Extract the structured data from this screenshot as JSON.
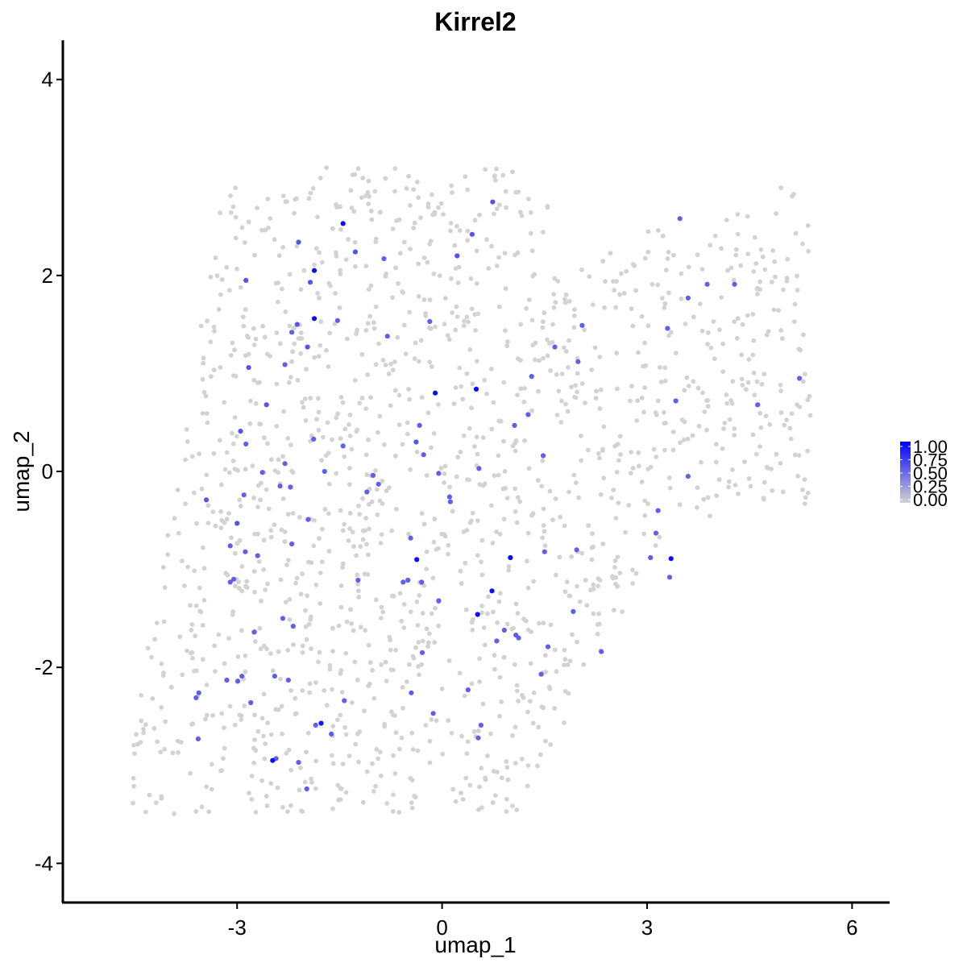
{
  "chart_data": {
    "type": "scatter",
    "title": "Kirrel2",
    "xlabel": "umap_1",
    "ylabel": "umap_2",
    "xlim": [
      -5.55,
      6.55
    ],
    "ylim": [
      -4.4,
      4.4
    ],
    "x_ticks": [
      {
        "value": -3,
        "label": "-3"
      },
      {
        "value": 0,
        "label": "0"
      },
      {
        "value": 3,
        "label": "3"
      },
      {
        "value": 6,
        "label": "6"
      }
    ],
    "y_ticks": [
      {
        "value": -4,
        "label": "-4"
      },
      {
        "value": -2,
        "label": "-2"
      },
      {
        "value": 0,
        "label": "0"
      },
      {
        "value": 2,
        "label": "2"
      },
      {
        "value": 4,
        "label": "4"
      }
    ],
    "grid": false,
    "color_scale": {
      "low": "#d3d3d3",
      "high": "#0000ff",
      "min": 0,
      "max": 1
    },
    "legend": {
      "placement": "right",
      "labels": [
        "1.00",
        "0.75",
        "0.50",
        "0.25",
        "0.00"
      ]
    },
    "background_points_count": 1500,
    "background_points_value": 0,
    "expressing_points": [
      {
        "x": -1.45,
        "y": 2.53,
        "v": 0.95
      },
      {
        "x": -1.87,
        "y": 2.05,
        "v": 0.95
      },
      {
        "x": -1.87,
        "y": 1.56,
        "v": 0.95
      },
      {
        "x": 0.5,
        "y": 0.84,
        "v": 0.95
      },
      {
        "x": -0.1,
        "y": 0.8,
        "v": 0.95
      },
      {
        "x": -0.37,
        "y": -0.9,
        "v": 0.95
      },
      {
        "x": 1.0,
        "y": -0.88,
        "v": 0.95
      },
      {
        "x": 3.35,
        "y": -0.89,
        "v": 0.95
      },
      {
        "x": 0.73,
        "y": -1.22,
        "v": 0.95
      },
      {
        "x": 0.52,
        "y": -1.46,
        "v": 0.95
      },
      {
        "x": -1.77,
        "y": -2.57,
        "v": 0.9
      },
      {
        "x": -2.48,
        "y": -2.95,
        "v": 0.95
      },
      {
        "x": 0.74,
        "y": 2.75,
        "v": 0.6
      },
      {
        "x": 0.44,
        "y": 2.42,
        "v": 0.6
      },
      {
        "x": -2.1,
        "y": 2.34,
        "v": 0.6
      },
      {
        "x": -1.27,
        "y": 2.24,
        "v": 0.6
      },
      {
        "x": 0.22,
        "y": 2.2,
        "v": 0.6
      },
      {
        "x": -0.85,
        "y": 2.17,
        "v": 0.55
      },
      {
        "x": -2.87,
        "y": 1.95,
        "v": 0.6
      },
      {
        "x": -1.93,
        "y": 1.93,
        "v": 0.6
      },
      {
        "x": -1.53,
        "y": 1.54,
        "v": 0.55
      },
      {
        "x": -2.12,
        "y": 1.5,
        "v": 0.6
      },
      {
        "x": -0.18,
        "y": 1.53,
        "v": 0.55
      },
      {
        "x": -2.2,
        "y": 1.42,
        "v": 0.55
      },
      {
        "x": -0.8,
        "y": 1.38,
        "v": 0.55
      },
      {
        "x": -1.97,
        "y": 1.27,
        "v": 0.6
      },
      {
        "x": -2.83,
        "y": 1.06,
        "v": 0.6
      },
      {
        "x": -2.3,
        "y": 1.09,
        "v": 0.55
      },
      {
        "x": 1.31,
        "y": 0.97,
        "v": 0.55
      },
      {
        "x": -2.57,
        "y": 0.68,
        "v": 0.6
      },
      {
        "x": 1.26,
        "y": 0.58,
        "v": 0.55
      },
      {
        "x": 1.06,
        "y": 0.47,
        "v": 0.55
      },
      {
        "x": -0.33,
        "y": 0.47,
        "v": 0.55
      },
      {
        "x": -2.95,
        "y": 0.41,
        "v": 0.6
      },
      {
        "x": -1.88,
        "y": 0.33,
        "v": 0.55
      },
      {
        "x": -0.38,
        "y": 0.3,
        "v": 0.6
      },
      {
        "x": -2.87,
        "y": 0.28,
        "v": 0.55
      },
      {
        "x": -1.45,
        "y": 0.26,
        "v": 0.55
      },
      {
        "x": -0.27,
        "y": 0.17,
        "v": 0.55
      },
      {
        "x": 1.48,
        "y": 0.16,
        "v": 0.55
      },
      {
        "x": -2.3,
        "y": 0.08,
        "v": 0.55
      },
      {
        "x": -2.63,
        "y": -0.01,
        "v": 0.55
      },
      {
        "x": -1.72,
        "y": 0.0,
        "v": 0.55
      },
      {
        "x": 0.54,
        "y": 0.03,
        "v": 0.55
      },
      {
        "x": -0.05,
        "y": -0.02,
        "v": 0.55
      },
      {
        "x": -1.01,
        "y": -0.04,
        "v": 0.55
      },
      {
        "x": 3.6,
        "y": -0.05,
        "v": 0.55
      },
      {
        "x": -2.37,
        "y": -0.15,
        "v": 0.55
      },
      {
        "x": -2.22,
        "y": -0.16,
        "v": 0.55
      },
      {
        "x": -0.93,
        "y": -0.13,
        "v": 0.55
      },
      {
        "x": -1.1,
        "y": -0.21,
        "v": 0.55
      },
      {
        "x": -2.9,
        "y": -0.24,
        "v": 0.55
      },
      {
        "x": 0.11,
        "y": -0.26,
        "v": 0.55
      },
      {
        "x": 0.12,
        "y": -0.31,
        "v": 0.55
      },
      {
        "x": -3.45,
        "y": -0.29,
        "v": 0.6
      },
      {
        "x": -3.0,
        "y": -0.53,
        "v": 0.6
      },
      {
        "x": -1.96,
        "y": -0.49,
        "v": 0.55
      },
      {
        "x": 3.16,
        "y": -0.4,
        "v": 0.55
      },
      {
        "x": -0.46,
        "y": -0.68,
        "v": 0.55
      },
      {
        "x": 3.13,
        "y": -0.63,
        "v": 0.55
      },
      {
        "x": -3.1,
        "y": -0.76,
        "v": 0.55
      },
      {
        "x": -2.2,
        "y": -0.74,
        "v": 0.55
      },
      {
        "x": -2.88,
        "y": -0.82,
        "v": 0.55
      },
      {
        "x": 1.97,
        "y": -0.8,
        "v": 0.55
      },
      {
        "x": 1.5,
        "y": -0.82,
        "v": 0.55
      },
      {
        "x": -2.7,
        "y": -0.86,
        "v": 0.55
      },
      {
        "x": 3.05,
        "y": -0.88,
        "v": 0.55
      },
      {
        "x": -3.05,
        "y": -1.1,
        "v": 0.55
      },
      {
        "x": -3.1,
        "y": -1.13,
        "v": 0.55
      },
      {
        "x": -1.23,
        "y": -1.11,
        "v": 0.55
      },
      {
        "x": -0.5,
        "y": -1.11,
        "v": 0.55
      },
      {
        "x": -0.57,
        "y": -1.13,
        "v": 0.55
      },
      {
        "x": -0.3,
        "y": -1.13,
        "v": 0.55
      },
      {
        "x": 3.33,
        "y": -1.08,
        "v": 0.55
      },
      {
        "x": -0.05,
        "y": -1.32,
        "v": 0.55
      },
      {
        "x": 1.92,
        "y": -1.43,
        "v": 0.55
      },
      {
        "x": -2.33,
        "y": -1.5,
        "v": 0.55
      },
      {
        "x": -2.18,
        "y": -1.58,
        "v": 0.55
      },
      {
        "x": 0.91,
        "y": -1.62,
        "v": 0.55
      },
      {
        "x": -2.75,
        "y": -1.64,
        "v": 0.55
      },
      {
        "x": 1.08,
        "y": -1.67,
        "v": 0.55
      },
      {
        "x": 1.12,
        "y": -1.7,
        "v": 0.55
      },
      {
        "x": 0.8,
        "y": -1.73,
        "v": 0.55
      },
      {
        "x": 1.55,
        "y": -1.79,
        "v": 0.55
      },
      {
        "x": -0.29,
        "y": -1.85,
        "v": 0.55
      },
      {
        "x": 2.33,
        "y": -1.84,
        "v": 0.55
      },
      {
        "x": 1.45,
        "y": -2.07,
        "v": 0.55
      },
      {
        "x": -2.45,
        "y": -2.09,
        "v": 0.55
      },
      {
        "x": -2.93,
        "y": -2.09,
        "v": 0.55
      },
      {
        "x": -3.15,
        "y": -2.13,
        "v": 0.55
      },
      {
        "x": -2.99,
        "y": -2.14,
        "v": 0.55
      },
      {
        "x": -2.25,
        "y": -2.13,
        "v": 0.55
      },
      {
        "x": 0.38,
        "y": -2.23,
        "v": 0.55
      },
      {
        "x": -0.45,
        "y": -2.26,
        "v": 0.55
      },
      {
        "x": -3.56,
        "y": -2.26,
        "v": 0.55
      },
      {
        "x": -3.6,
        "y": -2.31,
        "v": 0.55
      },
      {
        "x": -1.43,
        "y": -2.34,
        "v": 0.55
      },
      {
        "x": -2.8,
        "y": -2.36,
        "v": 0.55
      },
      {
        "x": -0.13,
        "y": -2.47,
        "v": 0.55
      },
      {
        "x": -1.85,
        "y": -2.59,
        "v": 0.55
      },
      {
        "x": 0.57,
        "y": -2.59,
        "v": 0.55
      },
      {
        "x": -1.62,
        "y": -2.68,
        "v": 0.55
      },
      {
        "x": 0.53,
        "y": -2.72,
        "v": 0.55
      },
      {
        "x": -3.57,
        "y": -2.73,
        "v": 0.55
      },
      {
        "x": -2.43,
        "y": -2.93,
        "v": 0.55
      },
      {
        "x": -2.1,
        "y": -2.97,
        "v": 0.55
      },
      {
        "x": -1.98,
        "y": -3.24,
        "v": 0.55
      },
      {
        "x": 3.48,
        "y": 2.58,
        "v": 0.55
      },
      {
        "x": 3.88,
        "y": 1.91,
        "v": 0.55
      },
      {
        "x": 4.28,
        "y": 1.91,
        "v": 0.55
      },
      {
        "x": 3.6,
        "y": 1.77,
        "v": 0.55
      },
      {
        "x": 2.05,
        "y": 1.49,
        "v": 0.55
      },
      {
        "x": 3.3,
        "y": 1.46,
        "v": 0.55
      },
      {
        "x": 1.65,
        "y": 1.27,
        "v": 0.55
      },
      {
        "x": 1.99,
        "y": 1.12,
        "v": 0.55
      },
      {
        "x": 5.23,
        "y": 0.95,
        "v": 0.55
      },
      {
        "x": 3.42,
        "y": 0.72,
        "v": 0.55
      },
      {
        "x": 4.62,
        "y": 0.68,
        "v": 0.55
      }
    ]
  }
}
